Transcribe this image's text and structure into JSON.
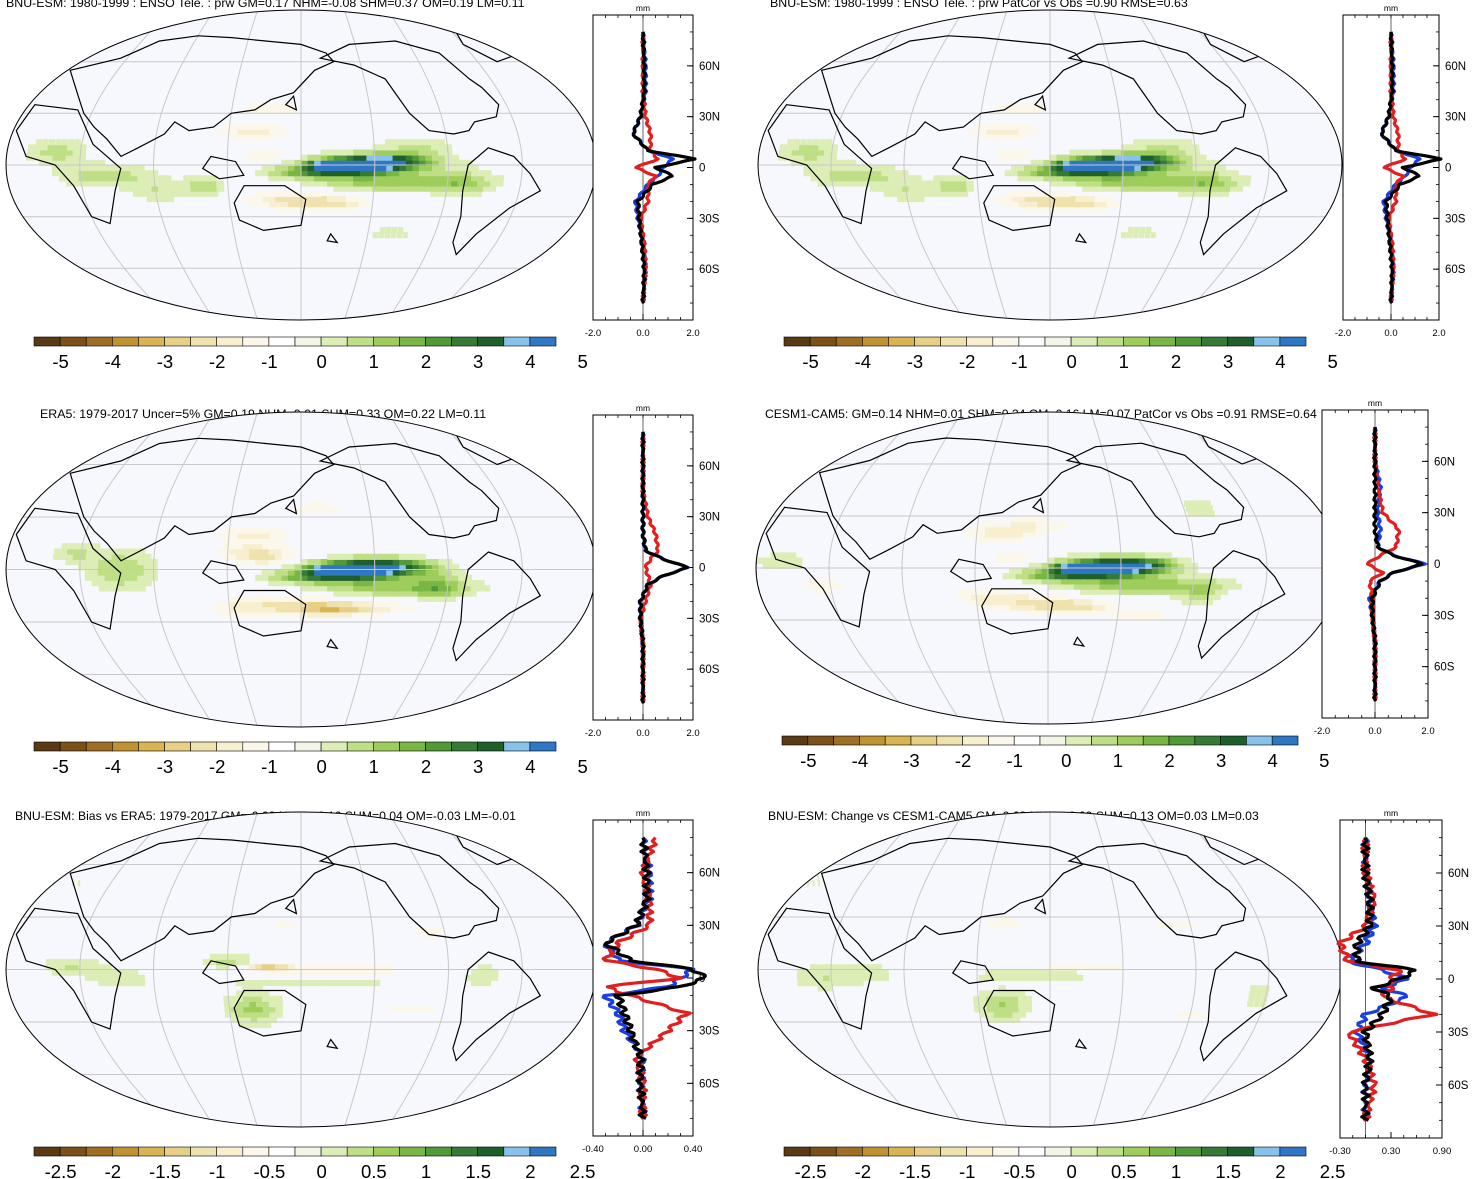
{
  "palettes": {
    "brown_to_blue": [
      "#5a3a14",
      "#7b5019",
      "#9e6e25",
      "#c09332",
      "#d8b552",
      "#e6cf86",
      "#f0e2ad",
      "#f7efcf",
      "#fbf7ea",
      "#ffffff",
      "#f3f6e6",
      "#dcedb6",
      "#bfdf86",
      "#9fcd5b",
      "#79b645",
      "#52993a",
      "#357a35",
      "#1f5f2c",
      "#86c2ea",
      "#2f77c2"
    ]
  },
  "colors": {
    "model": "#1a3fe0",
    "obs": "#e02020",
    "diff": "#000000",
    "coast": "#000000",
    "grid": "#c8c8c8",
    "ocean": "#f7f8fd"
  },
  "panels": [
    {
      "title": "BNU-ESM: 1980-1999 : ENSO Tele. : prw GM=0.17 NHM=-0.08 SHM=0.37 OM=0.19 LM=0.11",
      "colorbar_labels": [
        "-5",
        "-4",
        "-3",
        "-2",
        "-1",
        "0",
        "1",
        "2",
        "3",
        "4",
        "5"
      ],
      "profile": {
        "unit": "mm",
        "lat_labels": [
          "60N",
          "30N",
          "0",
          "30S",
          "60S"
        ],
        "x_ticks": [
          "-2.0",
          "0.0",
          "2.0"
        ]
      }
    },
    {
      "title": "BNU-ESM: 1980-1999 : ENSO Tele. : prw PatCor vs Obs =0.90 RMSE=0.63",
      "colorbar_labels": [
        "-5",
        "-4",
        "-3",
        "-2",
        "-1",
        "0",
        "1",
        "2",
        "3",
        "4",
        "5"
      ],
      "profile": {
        "unit": "mm",
        "lat_labels": [
          "60N",
          "30N",
          "0",
          "30S",
          "60S"
        ],
        "x_ticks": [
          "-2.0",
          "0.0",
          "2.0"
        ]
      }
    },
    {
      "title": "ERA5: 1979-2017 Uncer=5% GM=0.19 NHM=0.01 SHM=0.33 OM=0.22 LM=0.11",
      "colorbar_labels": [
        "-5",
        "-4",
        "-3",
        "-2",
        "-1",
        "0",
        "1",
        "2",
        "3",
        "4",
        "5"
      ],
      "profile": {
        "unit": "mm",
        "lat_labels": [
          "60N",
          "30N",
          "0",
          "30S",
          "60S"
        ],
        "x_ticks": [
          "-2.0",
          "0.0",
          "2.0"
        ]
      }
    },
    {
      "title": "CESM1-CAM5: GM=0.14 NHM=0.01 SHM=0.24 OM=0.16 LM=0.07 PatCor vs Obs =0.91 RMSE=0.64",
      "colorbar_labels": [
        "-5",
        "-4",
        "-3",
        "-2",
        "-1",
        "0",
        "1",
        "2",
        "3",
        "4",
        "5"
      ],
      "profile": {
        "unit": "mm",
        "lat_labels": [
          "60N",
          "30N",
          "0",
          "30S",
          "60S"
        ],
        "x_ticks": [
          "-2.0",
          "0.0",
          "2.0"
        ]
      }
    },
    {
      "title": "BNU-ESM: Bias vs ERA5: 1979-2017 GM=-0.02 NHM=-0.10 SHM=0.04 OM=-0.03 LM=-0.01",
      "colorbar_labels": [
        "-2.5",
        "-2",
        "-1.5",
        "-1",
        "-0.5",
        "0",
        "0.5",
        "1",
        "1.5",
        "2",
        "2.5"
      ],
      "profile": {
        "unit": "mm",
        "lat_labels": [
          "60N",
          "30N",
          "0",
          "30S",
          "60S"
        ],
        "x_ticks": [
          "-0.40",
          "0.00",
          "0.40"
        ]
      }
    },
    {
      "title": "BNU-ESM: Change vs CESM1-CAM5 GM=0.03 NHM=-0.09 SHM=0.13 OM=0.03 LM=0.03",
      "colorbar_labels": [
        "-2.5",
        "-2",
        "-1.5",
        "-1",
        "-0.5",
        "0",
        "0.5",
        "1",
        "1.5",
        "2",
        "2.5"
      ],
      "profile": {
        "unit": "mm",
        "lat_labels": [
          "60N",
          "30N",
          "0",
          "30S",
          "60S"
        ],
        "x_ticks": [
          "-0.30",
          "0.30",
          "0.90"
        ]
      }
    }
  ],
  "chart_data": [
    {
      "type": "heatmap",
      "title": "BNU-ESM: 1980-1999 : ENSO Tele. : prw GM=0.17 NHM=-0.08 SHM=0.37 OM=0.19 LM=0.11",
      "colorbar": [
        -5,
        -4,
        -3,
        -2,
        -1,
        0,
        1,
        2,
        3,
        4,
        5
      ],
      "grid": true,
      "fields": [
        "eqpac",
        "model"
      ],
      "profile": {
        "type": "line",
        "y": [
          -80,
          -60,
          -45,
          -30,
          -20,
          -10,
          -5,
          0,
          5,
          10,
          20,
          30,
          45,
          60,
          80
        ],
        "x_ticks": [
          -2.0,
          0.0,
          2.0
        ],
        "series": [
          {
            "values": [
              0.0,
              0.1,
              0.0,
              -0.2,
              -0.3,
              0.2,
              0.6,
              0.8,
              1.2,
              0.2,
              -0.4,
              -0.1,
              0.1,
              0.1,
              0.0
            ]
          },
          {
            "values": [
              0.0,
              0.1,
              0.05,
              -0.1,
              0.2,
              0.2,
              0.5,
              -0.3,
              0.6,
              0.3,
              0.3,
              0.1,
              0.0,
              0.0,
              0.0
            ]
          },
          {
            "values": [
              0.0,
              0.05,
              -0.05,
              -0.15,
              -0.2,
              0.4,
              1.2,
              0.5,
              2.1,
              0.2,
              -0.4,
              -0.1,
              0.05,
              0.05,
              0.0
            ]
          }
        ]
      }
    },
    {
      "type": "heatmap",
      "title": "BNU-ESM: 1980-1999 : ENSO Tele. : prw PatCor vs Obs =0.90 RMSE=0.63",
      "colorbar": [
        -5,
        -4,
        -3,
        -2,
        -1,
        0,
        1,
        2,
        3,
        4,
        5
      ],
      "grid": true,
      "fields": [
        "eqpac",
        "model"
      ],
      "profile": {
        "type": "line",
        "y": [
          -80,
          -60,
          -45,
          -30,
          -20,
          -10,
          -5,
          0,
          5,
          10,
          20,
          30,
          45,
          60,
          80
        ],
        "x_ticks": [
          -2.0,
          0.0,
          2.0
        ],
        "series": [
          {
            "values": [
              0.0,
              0.1,
              0.0,
              -0.2,
              -0.3,
              0.2,
              0.6,
              0.8,
              1.2,
              0.2,
              -0.4,
              -0.1,
              0.1,
              0.1,
              0.0
            ]
          },
          {
            "values": [
              0.0,
              0.1,
              0.05,
              -0.1,
              0.2,
              0.2,
              0.5,
              -0.3,
              0.6,
              0.3,
              0.3,
              0.1,
              0.0,
              0.0,
              0.0
            ]
          },
          {
            "values": [
              0.0,
              0.05,
              -0.05,
              -0.15,
              -0.2,
              0.4,
              1.2,
              0.5,
              2.1,
              0.2,
              -0.4,
              -0.1,
              0.05,
              0.05,
              0.0
            ]
          }
        ]
      }
    },
    {
      "type": "heatmap",
      "title": "ERA5: 1979-2017 Uncer=5% GM=0.19 NHM=0.01 SHM=0.33 OM=0.22 LM=0.11",
      "colorbar": [
        -5,
        -4,
        -3,
        -2,
        -1,
        0,
        1,
        2,
        3,
        4,
        5
      ],
      "grid": true,
      "fields": [
        "eqpac",
        "obs"
      ],
      "profile": {
        "type": "line",
        "y": [
          -80,
          -60,
          -45,
          -30,
          -20,
          -10,
          -5,
          0,
          5,
          10,
          20,
          30,
          45,
          60,
          80
        ],
        "x_ticks": [
          -2.0,
          0.0,
          2.0
        ],
        "series": [
          {
            "values": [
              0.0,
              0.0,
              0.0,
              -0.1,
              -0.1,
              0.2,
              0.8,
              1.8,
              0.8,
              0.1,
              0.0,
              0.0,
              0.0,
              0.0,
              0.0
            ]
          },
          {
            "values": [
              0.0,
              0.0,
              0.0,
              -0.1,
              0.1,
              0.3,
              0.2,
              0.1,
              0.3,
              0.6,
              0.5,
              0.2,
              0.0,
              0.0,
              0.0
            ]
          },
          {
            "values": [
              0.0,
              0.0,
              0.0,
              -0.1,
              -0.1,
              0.2,
              0.8,
              1.8,
              0.8,
              0.1,
              0.0,
              0.0,
              0.0,
              0.0,
              0.0
            ]
          }
        ]
      }
    },
    {
      "type": "heatmap",
      "title": "CESM1-CAM5: GM=0.14 NHM=0.01 SHM=0.24 OM=0.16 LM=0.07 PatCor vs Obs =0.91 RMSE=0.64",
      "colorbar": [
        -5,
        -4,
        -3,
        -2,
        -1,
        0,
        1,
        2,
        3,
        4,
        5
      ],
      "grid": true,
      "fields": [
        "eqpac",
        "cesm"
      ],
      "profile": {
        "type": "line",
        "y": [
          -80,
          -60,
          -45,
          -30,
          -20,
          -10,
          -5,
          0,
          5,
          10,
          20,
          30,
          45,
          60,
          80
        ],
        "x_ticks": [
          -2.0,
          0.0,
          2.0
        ],
        "series": [
          {
            "values": [
              0.0,
              0.0,
              0.0,
              -0.1,
              -0.2,
              0.2,
              0.7,
              1.9,
              0.7,
              0.1,
              0.2,
              0.1,
              0.2,
              0.0,
              0.0
            ]
          },
          {
            "values": [
              0.0,
              0.0,
              0.0,
              -0.1,
              -0.1,
              -0.2,
              0.3,
              -0.3,
              0.2,
              0.8,
              0.9,
              0.3,
              0.1,
              0.0,
              0.0
            ]
          },
          {
            "values": [
              0.0,
              0.0,
              0.0,
              -0.1,
              -0.1,
              0.2,
              0.7,
              1.8,
              0.7,
              0.1,
              0.0,
              0.0,
              0.0,
              0.0,
              0.0
            ]
          }
        ]
      }
    },
    {
      "type": "heatmap",
      "title": "BNU-ESM: Bias vs ERA5: 1979-2017 GM=-0.02 NHM=-0.10 SHM=0.04 OM=-0.03 LM=-0.01",
      "colorbar": [
        -2.5,
        -2,
        -1.5,
        -1,
        -0.5,
        0,
        0.5,
        1,
        1.5,
        2,
        2.5
      ],
      "grid": true,
      "fields": [
        "bias"
      ],
      "profile": {
        "type": "line",
        "y": [
          -80,
          -60,
          -45,
          -30,
          -20,
          -10,
          -5,
          0,
          5,
          10,
          20,
          30,
          45,
          60,
          80
        ],
        "x_ticks": [
          -0.4,
          0.0,
          0.4
        ],
        "series": [
          {
            "values": [
              0.0,
              -0.02,
              0.0,
              -0.15,
              -0.2,
              -0.3,
              0.2,
              0.3,
              0.4,
              -0.2,
              -0.3,
              -0.05,
              0.05,
              0.05,
              0.0
            ]
          },
          {
            "values": [
              0.0,
              0.0,
              -0.05,
              0.2,
              0.35,
              -0.1,
              -0.3,
              0.3,
              0.1,
              -0.3,
              -0.2,
              0.05,
              0.05,
              0.0,
              0.1
            ]
          },
          {
            "values": [
              0.0,
              -0.02,
              -0.02,
              -0.1,
              -0.15,
              -0.2,
              0.3,
              0.5,
              0.4,
              -0.1,
              -0.3,
              -0.05,
              0.03,
              0.03,
              0.0
            ]
          }
        ]
      }
    },
    {
      "type": "heatmap",
      "title": "BNU-ESM: Change vs CESM1-CAM5 GM=0.03 NHM=-0.09 SHM=0.13 OM=0.03 LM=0.03",
      "colorbar": [
        -2.5,
        -2,
        -1.5,
        -1,
        -0.5,
        0,
        0.5,
        1,
        1.5,
        2,
        2.5
      ],
      "grid": true,
      "fields": [
        "change"
      ],
      "profile": {
        "type": "line",
        "y": [
          -80,
          -60,
          -45,
          -30,
          -20,
          -10,
          -5,
          0,
          5,
          10,
          20,
          30,
          45,
          60,
          80
        ],
        "x_ticks": [
          -0.3,
          0.3,
          0.9
        ],
        "series": [
          {
            "values": [
              0.0,
              0.0,
              0.05,
              -0.1,
              0.0,
              0.5,
              0.2,
              0.5,
              0.2,
              -0.2,
              0.0,
              0.1,
              0.05,
              0.0,
              0.0
            ]
          },
          {
            "values": [
              0.0,
              0.1,
              0.0,
              -0.2,
              0.8,
              0.2,
              0.3,
              0.3,
              0.4,
              -0.2,
              -0.3,
              0.0,
              0.1,
              0.0,
              0.0
            ]
          },
          {
            "values": [
              0.0,
              0.0,
              0.05,
              0.0,
              0.2,
              0.3,
              0.1,
              0.4,
              0.6,
              -0.1,
              -0.1,
              0.05,
              0.05,
              0.0,
              0.0
            ]
          }
        ]
      }
    }
  ]
}
